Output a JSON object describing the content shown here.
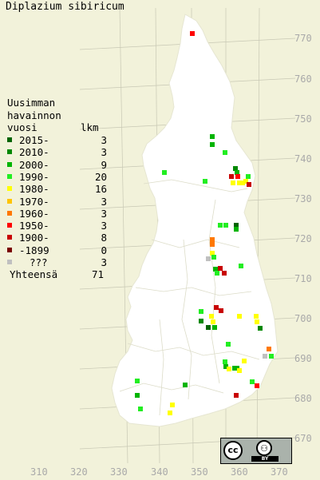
{
  "title": "Diplazium sibiricum",
  "legend": {
    "heading": [
      "Uusimman",
      "havainnon"
    ],
    "col_year": "vuosi",
    "col_count": "lkm",
    "entries": [
      {
        "label": "2015-",
        "count": "3",
        "color": "#006400"
      },
      {
        "label": "2010-",
        "count": "3",
        "color": "#008800"
      },
      {
        "label": "2000-",
        "count": "9",
        "color": "#00b400"
      },
      {
        "label": "1990-",
        "count": "20",
        "color": "#22ee22"
      },
      {
        "label": "1980-",
        "count": "16",
        "color": "#ffff00"
      },
      {
        "label": "1970-",
        "count": "3",
        "color": "#ffc400"
      },
      {
        "label": "1960-",
        "count": "3",
        "color": "#ff7800"
      },
      {
        "label": "1950-",
        "count": "3",
        "color": "#ff0000"
      },
      {
        "label": "1900-",
        "count": "8",
        "color": "#c80000"
      },
      {
        "label": "-1899",
        "count": "0",
        "color": "#7a0000"
      },
      {
        "label": "???",
        "count": "3",
        "color": "#c0c0c0"
      }
    ],
    "total_label": "Yhteensä",
    "total_count": "71"
  },
  "y_ticks": [
    "770",
    "760",
    "750",
    "740",
    "730",
    "720",
    "710",
    "700",
    "690",
    "680",
    "670"
  ],
  "x_ticks": [
    "310",
    "320",
    "330",
    "340",
    "350",
    "360",
    "370"
  ],
  "license": {
    "cc": "cc",
    "by_icon": "person-icon",
    "by_text": "BY"
  }
}
